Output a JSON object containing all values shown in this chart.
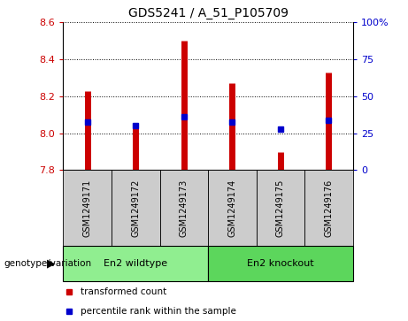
{
  "title": "GDS5241 / A_51_P105709",
  "samples": [
    "GSM1249171",
    "GSM1249172",
    "GSM1249173",
    "GSM1249174",
    "GSM1249175",
    "GSM1249176"
  ],
  "bar_values": [
    8.23,
    8.04,
    8.5,
    8.27,
    7.9,
    8.33
  ],
  "bar_base": 7.8,
  "bar_color": "#cc0000",
  "blue_dot_values": [
    8.06,
    8.04,
    8.09,
    8.06,
    8.02,
    8.07
  ],
  "blue_dot_color": "#0000cc",
  "ylim_left": [
    7.8,
    8.6
  ],
  "ylim_right": [
    0,
    100
  ],
  "yticks_left": [
    7.8,
    8.0,
    8.2,
    8.4,
    8.6
  ],
  "yticks_right": [
    0,
    25,
    50,
    75,
    100
  ],
  "ytick_labels_right": [
    "0",
    "25",
    "50",
    "75",
    "100%"
  ],
  "groups": [
    {
      "label": "En2 wildtype",
      "indices": [
        0,
        1,
        2
      ],
      "color": "#90ee90"
    },
    {
      "label": "En2 knockout",
      "indices": [
        3,
        4,
        5
      ],
      "color": "#5cd65c"
    }
  ],
  "group_label": "genotype/variation",
  "legend_items": [
    {
      "color": "#cc0000",
      "label": "transformed count"
    },
    {
      "color": "#0000cc",
      "label": "percentile rank within the sample"
    }
  ],
  "tick_color_left": "#cc0000",
  "tick_color_right": "#0000cc",
  "sample_box_color": "#cccccc",
  "bg_color": "#ffffff"
}
